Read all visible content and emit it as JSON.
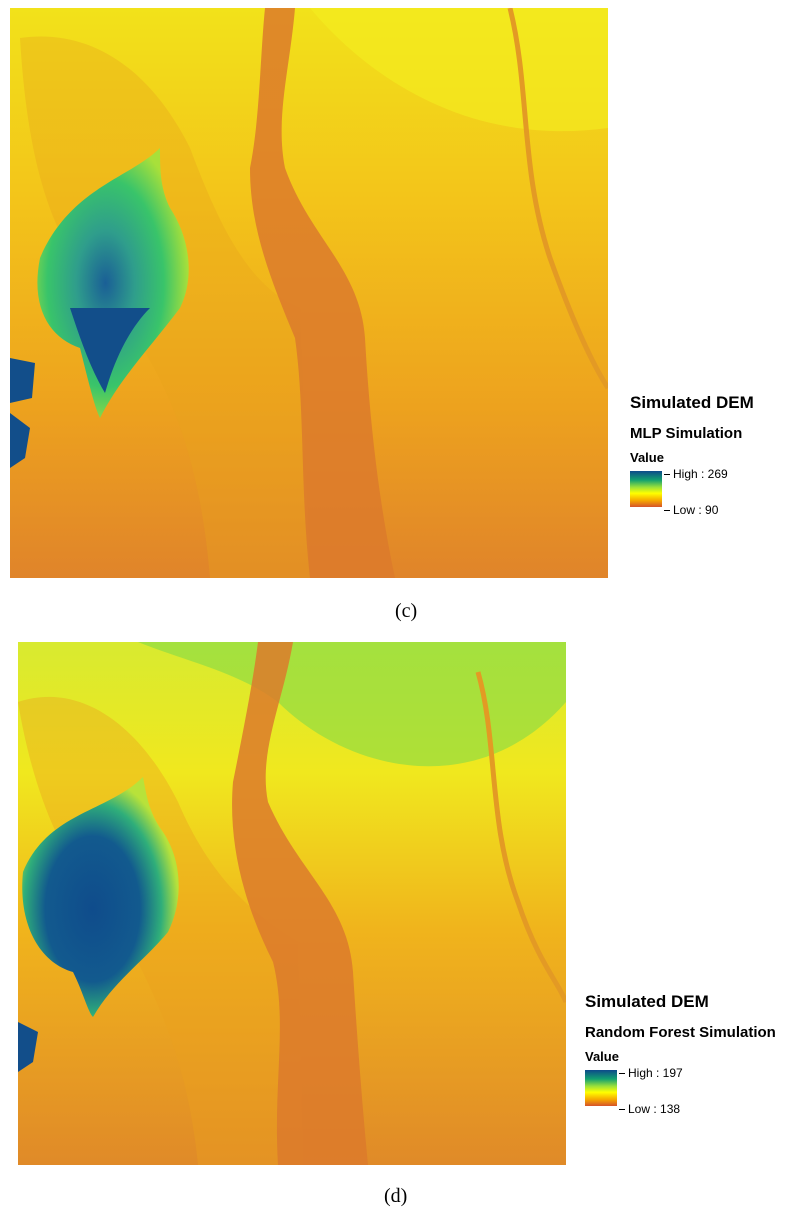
{
  "panels": [
    {
      "caption": "(c)",
      "legend": {
        "title": "Simulated DEM",
        "subtitle": "MLP Simulation",
        "field": "Value",
        "high": "High : 269",
        "low": "Low : 90"
      }
    },
    {
      "caption": "(d)",
      "legend": {
        "title": "Simulated DEM",
        "subtitle": "Random Forest Simulation",
        "field": "Value",
        "high": "High : 197",
        "low": "Low : 138"
      }
    }
  ]
}
